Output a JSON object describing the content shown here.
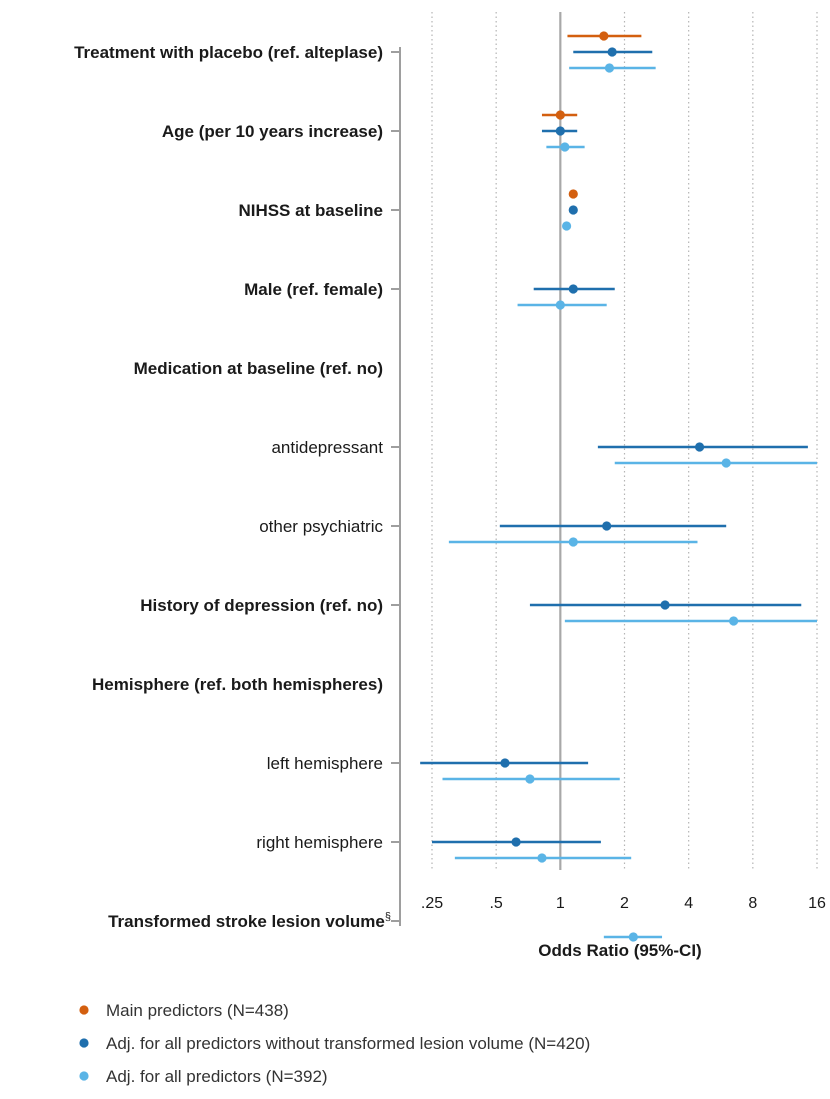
{
  "chart_data": {
    "type": "forest",
    "xlabel": "Odds Ratio (95%-CI)",
    "x_scale": "log2",
    "xlim": [
      0.25,
      16
    ],
    "x_ticks": [
      {
        "value": 0.25,
        "label": ".25"
      },
      {
        "value": 0.5,
        "label": ".5"
      },
      {
        "value": 1,
        "label": "1"
      },
      {
        "value": 2,
        "label": "2"
      },
      {
        "value": 4,
        "label": "4"
      },
      {
        "value": 8,
        "label": "8"
      },
      {
        "value": 16,
        "label": "16"
      }
    ],
    "reference_line": 1,
    "grid": "vertical dotted at ticks",
    "series_colors": [
      "#d35f0f",
      "#1f6fad",
      "#5ab4e6"
    ],
    "legend": [
      {
        "label": "Main predictors (N=438)"
      },
      {
        "label": "Adj. for all predictors without transformed lesion volume (N=420)"
      },
      {
        "label": "Adj. for all predictors (N=392)"
      }
    ],
    "legend_position": "bottom",
    "rows": [
      {
        "label": "Treatment with placebo (ref. alteplase)",
        "bold": true,
        "tick": true,
        "estimates": [
          [
            1.6,
            1.08,
            2.4
          ],
          [
            1.75,
            1.15,
            2.7
          ],
          [
            1.7,
            1.1,
            2.8
          ]
        ]
      },
      {
        "label": "Age (per 10 years increase)",
        "bold": true,
        "tick": true,
        "estimates": [
          [
            1.0,
            0.82,
            1.2
          ],
          [
            1.0,
            0.82,
            1.2
          ],
          [
            1.05,
            0.86,
            1.3
          ]
        ]
      },
      {
        "label": "NIHSS at baseline",
        "bold": true,
        "tick": true,
        "estimates": [
          [
            1.15,
            1.12,
            1.18
          ],
          [
            1.15,
            1.12,
            1.18
          ],
          [
            1.07,
            1.04,
            1.1
          ]
        ]
      },
      {
        "label": "Male (ref. female)",
        "bold": true,
        "tick": true,
        "estimates": [
          null,
          [
            1.15,
            0.75,
            1.8
          ],
          [
            1.0,
            0.63,
            1.65
          ]
        ]
      },
      {
        "label": "Medication at baseline (ref. no)",
        "bold": true,
        "tick": false,
        "estimates": [
          null,
          null,
          null
        ]
      },
      {
        "label": "antidepressant",
        "bold": false,
        "tick": true,
        "estimates": [
          null,
          [
            4.5,
            1.5,
            14.5
          ],
          [
            6.0,
            1.8,
            16.0
          ]
        ]
      },
      {
        "label": "other psychiatric",
        "bold": false,
        "tick": true,
        "estimates": [
          null,
          [
            1.65,
            0.52,
            6.0
          ],
          [
            1.15,
            0.3,
            4.4
          ]
        ]
      },
      {
        "label": "History of depression (ref. no)",
        "bold": true,
        "tick": true,
        "estimates": [
          null,
          [
            3.1,
            0.72,
            13.5
          ],
          [
            6.5,
            1.05,
            16.0
          ]
        ]
      },
      {
        "label": "Hemisphere (ref. both hemispheres)",
        "bold": true,
        "tick": false,
        "estimates": [
          null,
          null,
          null
        ]
      },
      {
        "label": "left hemisphere",
        "bold": false,
        "tick": true,
        "estimates": [
          null,
          [
            0.55,
            0.22,
            1.35
          ],
          [
            0.72,
            0.28,
            1.9
          ]
        ]
      },
      {
        "label": "right hemisphere",
        "bold": false,
        "tick": true,
        "estimates": [
          null,
          [
            0.62,
            0.25,
            1.55
          ],
          [
            0.82,
            0.32,
            2.15
          ]
        ]
      },
      {
        "label": "Transformed stroke lesion volume",
        "superscript": "§",
        "bold": true,
        "tick": true,
        "estimates": [
          null,
          null,
          [
            2.2,
            1.6,
            3.0
          ]
        ]
      }
    ]
  }
}
